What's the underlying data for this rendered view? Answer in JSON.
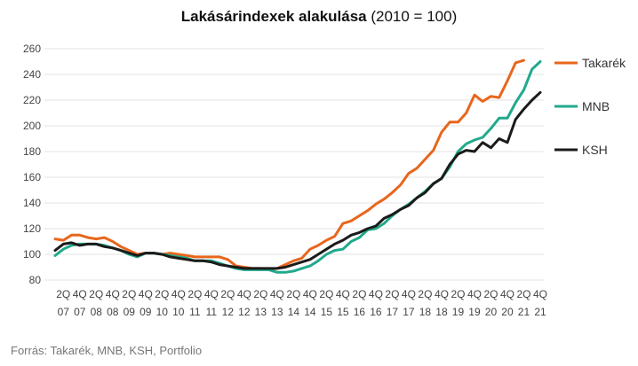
{
  "chart_data": {
    "type": "line",
    "title": "Lakásárindexek alakulása",
    "subtitle": "(2010 = 100)",
    "xlabel": "",
    "ylabel": "",
    "ylim": [
      80,
      260
    ],
    "yticks": [
      80,
      100,
      120,
      140,
      160,
      180,
      200,
      220,
      240,
      260
    ],
    "grid": true,
    "legend_position": "right",
    "x_tick_labels": [
      [
        "2Q",
        "07"
      ],
      [
        "4Q",
        "07"
      ],
      [
        "2Q",
        "08"
      ],
      [
        "4Q",
        "08"
      ],
      [
        "2Q",
        "09"
      ],
      [
        "4Q",
        "09"
      ],
      [
        "2Q",
        "10"
      ],
      [
        "4Q",
        "10"
      ],
      [
        "2Q",
        "11"
      ],
      [
        "4Q",
        "11"
      ],
      [
        "2Q",
        "12"
      ],
      [
        "4Q",
        "12"
      ],
      [
        "2Q",
        "13"
      ],
      [
        "4Q",
        "13"
      ],
      [
        "2Q",
        "14"
      ],
      [
        "4Q",
        "14"
      ],
      [
        "2Q",
        "15"
      ],
      [
        "4Q",
        "15"
      ],
      [
        "2Q",
        "16"
      ],
      [
        "4Q",
        "16"
      ],
      [
        "2Q",
        "17"
      ],
      [
        "4Q",
        "17"
      ],
      [
        "2Q",
        "18"
      ],
      [
        "4Q",
        "18"
      ],
      [
        "2Q",
        "19"
      ],
      [
        "4Q",
        "19"
      ],
      [
        "2Q",
        "20"
      ],
      [
        "4Q",
        "20"
      ],
      [
        "2Q",
        "21"
      ],
      [
        "4Q",
        "21"
      ]
    ],
    "x": [
      "2007Q1",
      "2007Q2",
      "2007Q3",
      "2007Q4",
      "2008Q1",
      "2008Q2",
      "2008Q3",
      "2008Q4",
      "2009Q1",
      "2009Q2",
      "2009Q3",
      "2009Q4",
      "2010Q1",
      "2010Q2",
      "2010Q3",
      "2010Q4",
      "2011Q1",
      "2011Q2",
      "2011Q3",
      "2011Q4",
      "2012Q1",
      "2012Q2",
      "2012Q3",
      "2012Q4",
      "2013Q1",
      "2013Q2",
      "2013Q3",
      "2013Q4",
      "2014Q1",
      "2014Q2",
      "2014Q3",
      "2014Q4",
      "2015Q1",
      "2015Q2",
      "2015Q3",
      "2015Q4",
      "2016Q1",
      "2016Q2",
      "2016Q3",
      "2016Q4",
      "2017Q1",
      "2017Q2",
      "2017Q3",
      "2017Q4",
      "2018Q1",
      "2018Q2",
      "2018Q3",
      "2018Q4",
      "2019Q1",
      "2019Q2",
      "2019Q3",
      "2019Q4",
      "2020Q1",
      "2020Q2",
      "2020Q3",
      "2020Q4",
      "2021Q1",
      "2021Q2",
      "2021Q3",
      "2021Q4"
    ],
    "series": [
      {
        "name": "Takarék",
        "color": "#e8661c",
        "values": [
          112,
          111,
          115,
          115,
          113,
          112,
          113,
          110,
          106,
          103,
          100,
          101,
          101,
          100,
          101,
          100,
          99,
          98,
          98,
          98,
          98,
          96,
          91,
          90,
          89,
          89,
          88,
          89,
          92,
          95,
          97,
          104,
          107,
          111,
          114,
          124,
          126,
          130,
          134,
          139,
          143,
          148,
          154,
          163,
          167,
          174,
          181,
          195,
          203,
          203,
          210,
          224,
          219,
          223,
          222,
          235,
          249,
          251,
          null,
          null
        ]
      },
      {
        "name": "MNB",
        "color": "#22a98c",
        "values": [
          99,
          104,
          107,
          108,
          108,
          108,
          107,
          105,
          103,
          100,
          98,
          101,
          101,
          100,
          99,
          98,
          97,
          95,
          95,
          95,
          93,
          91,
          89,
          88,
          88,
          88,
          88,
          86,
          86,
          87,
          89,
          91,
          95,
          100,
          103,
          104,
          110,
          113,
          119,
          120,
          124,
          130,
          135,
          139,
          144,
          149,
          155,
          159,
          168,
          180,
          186,
          189,
          191,
          198,
          206,
          206,
          218,
          228,
          244,
          250
        ]
      },
      {
        "name": "KSH",
        "color": "#1b1b1b",
        "values": [
          103,
          108,
          109,
          107,
          108,
          108,
          106,
          105,
          103,
          101,
          99,
          101,
          101,
          100,
          98,
          97,
          96,
          95,
          95,
          94,
          92,
          91,
          90,
          89,
          89,
          89,
          89,
          89,
          90,
          92,
          94,
          96,
          100,
          104,
          108,
          111,
          115,
          117,
          120,
          122,
          128,
          131,
          135,
          138,
          144,
          148,
          155,
          159,
          170,
          178,
          181,
          180,
          187,
          183,
          190,
          187,
          205,
          213,
          220,
          226
        ]
      }
    ]
  }
}
